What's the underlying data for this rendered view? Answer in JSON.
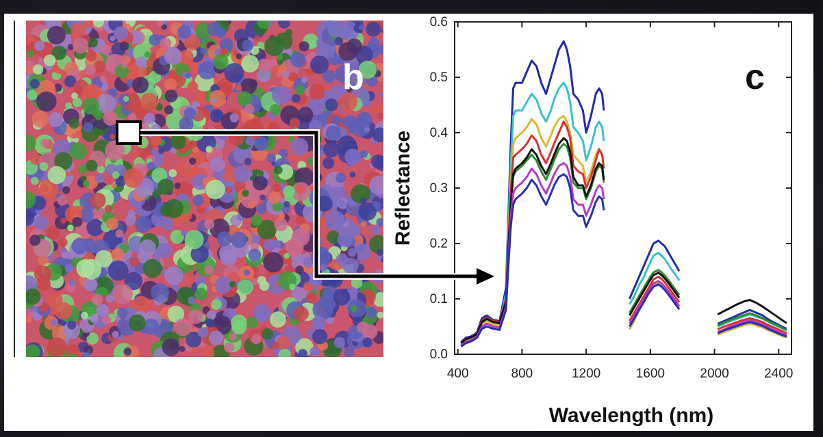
{
  "panels": {
    "map_label": "b",
    "chart_label": "c"
  },
  "colors": {
    "map_palette": [
      "#d9574f",
      "#c8464a",
      "#7c6fc4",
      "#5a5fb8",
      "#3d3f9a",
      "#a7e39a",
      "#76d37a",
      "#3f9b3a",
      "#2f6e2a",
      "#e0705a",
      "#9a7fc8",
      "#c96c8f",
      "#4a2f6a"
    ],
    "arrow": "#000000",
    "marker": "#ffffff"
  },
  "chart_data": {
    "type": "line",
    "xlabel": "Wavelength (nm)",
    "ylabel": "Reflectance",
    "xlim": [
      380,
      2480
    ],
    "ylim": [
      0.0,
      0.6
    ],
    "xticks": [
      400,
      800,
      1200,
      1600,
      2000,
      2400
    ],
    "yticks": [
      0.0,
      0.1,
      0.2,
      0.3,
      0.4,
      0.5,
      0.6
    ],
    "grid": false,
    "segments": [
      {
        "x": [
          420,
          450,
          480,
          500,
          520,
          550,
          580,
          620,
          660,
          700,
          715,
          730,
          745,
          760,
          780,
          800,
          830,
          860,
          890,
          920,
          950,
          980,
          1000,
          1030,
          1060,
          1080,
          1100,
          1120,
          1150,
          1180,
          1200,
          1230,
          1260,
          1280,
          1300,
          1310
        ]
      },
      {
        "x": [
          1470,
          1500,
          1530,
          1560,
          1590,
          1620,
          1650,
          1670,
          1690,
          1710,
          1730,
          1750,
          1770,
          1780
        ]
      },
      {
        "x": [
          2020,
          2060,
          2100,
          2140,
          2180,
          2220,
          2260,
          2300,
          2340,
          2380,
          2420,
          2450
        ]
      }
    ],
    "series": [
      {
        "color": "#1f2aa8",
        "values": [
          [
            0.022,
            0.03,
            0.032,
            0.035,
            0.04,
            0.065,
            0.07,
            0.062,
            0.06,
            0.12,
            0.25,
            0.38,
            0.48,
            0.49,
            0.49,
            0.49,
            0.51,
            0.53,
            0.52,
            0.49,
            0.47,
            0.5,
            0.52,
            0.55,
            0.565,
            0.55,
            0.52,
            0.47,
            0.46,
            0.44,
            0.4,
            0.43,
            0.47,
            0.48,
            0.47,
            0.44
          ],
          [
            0.1,
            0.12,
            0.14,
            0.16,
            0.18,
            0.2,
            0.205,
            0.2,
            0.195,
            0.185,
            0.175,
            0.165,
            0.155,
            0.15
          ],
          [
            0.055,
            0.06,
            0.065,
            0.07,
            0.075,
            0.08,
            0.075,
            0.07,
            0.062,
            0.056,
            0.05,
            0.046
          ]
        ]
      },
      {
        "color": "#38c0cc",
        "values": [
          [
            0.02,
            0.028,
            0.03,
            0.033,
            0.038,
            0.06,
            0.065,
            0.058,
            0.056,
            0.11,
            0.23,
            0.34,
            0.43,
            0.44,
            0.44,
            0.44,
            0.455,
            0.47,
            0.46,
            0.435,
            0.42,
            0.44,
            0.46,
            0.48,
            0.49,
            0.48,
            0.455,
            0.41,
            0.4,
            0.385,
            0.35,
            0.375,
            0.41,
            0.42,
            0.41,
            0.385
          ],
          [
            0.09,
            0.105,
            0.125,
            0.14,
            0.16,
            0.178,
            0.183,
            0.178,
            0.172,
            0.163,
            0.154,
            0.146,
            0.138,
            0.133
          ],
          [
            0.05,
            0.055,
            0.06,
            0.064,
            0.068,
            0.072,
            0.068,
            0.064,
            0.058,
            0.052,
            0.047,
            0.043
          ]
        ]
      },
      {
        "color": "#d8b838",
        "values": [
          [
            0.018,
            0.025,
            0.028,
            0.031,
            0.035,
            0.055,
            0.06,
            0.054,
            0.052,
            0.1,
            0.21,
            0.31,
            0.38,
            0.39,
            0.395,
            0.4,
            0.41,
            0.425,
            0.415,
            0.39,
            0.375,
            0.395,
            0.41,
            0.425,
            0.43,
            0.42,
            0.4,
            0.36,
            0.35,
            0.34,
            0.31,
            0.33,
            0.36,
            0.37,
            0.36,
            0.34
          ],
          [
            0.045,
            0.06,
            0.08,
            0.095,
            0.11,
            0.125,
            0.13,
            0.126,
            0.12,
            0.112,
            0.104,
            0.096,
            0.088,
            0.084
          ],
          [
            0.035,
            0.04,
            0.044,
            0.048,
            0.052,
            0.055,
            0.052,
            0.048,
            0.043,
            0.038,
            0.033,
            0.03
          ]
        ]
      },
      {
        "color": "#d83030",
        "values": [
          [
            0.02,
            0.028,
            0.03,
            0.033,
            0.038,
            0.06,
            0.066,
            0.06,
            0.058,
            0.1,
            0.2,
            0.29,
            0.355,
            0.36,
            0.365,
            0.37,
            0.38,
            0.395,
            0.385,
            0.36,
            0.345,
            0.365,
            0.38,
            0.4,
            0.42,
            0.41,
            0.39,
            0.34,
            0.33,
            0.325,
            0.3,
            0.32,
            0.35,
            0.37,
            0.36,
            0.335
          ],
          [
            0.06,
            0.075,
            0.09,
            0.105,
            0.12,
            0.135,
            0.14,
            0.136,
            0.13,
            0.122,
            0.114,
            0.106,
            0.098,
            0.094
          ],
          [
            0.045,
            0.05,
            0.054,
            0.058,
            0.062,
            0.065,
            0.062,
            0.058,
            0.052,
            0.047,
            0.042,
            0.038
          ]
        ]
      },
      {
        "color": "#2f8a2f",
        "values": [
          [
            0.015,
            0.022,
            0.025,
            0.028,
            0.032,
            0.05,
            0.055,
            0.05,
            0.048,
            0.09,
            0.19,
            0.27,
            0.32,
            0.33,
            0.335,
            0.34,
            0.35,
            0.36,
            0.35,
            0.33,
            0.315,
            0.335,
            0.35,
            0.37,
            0.38,
            0.375,
            0.355,
            0.31,
            0.3,
            0.3,
            0.28,
            0.3,
            0.33,
            0.34,
            0.335,
            0.31
          ],
          [
            0.075,
            0.09,
            0.105,
            0.12,
            0.135,
            0.148,
            0.152,
            0.148,
            0.142,
            0.135,
            0.127,
            0.119,
            0.111,
            0.107
          ],
          [
            0.052,
            0.057,
            0.062,
            0.066,
            0.07,
            0.074,
            0.07,
            0.065,
            0.059,
            0.054,
            0.048,
            0.044
          ]
        ]
      },
      {
        "color": "#111111",
        "values": [
          [
            0.02,
            0.027,
            0.03,
            0.033,
            0.037,
            0.058,
            0.064,
            0.058,
            0.056,
            0.095,
            0.19,
            0.27,
            0.325,
            0.335,
            0.34,
            0.345,
            0.355,
            0.37,
            0.36,
            0.34,
            0.325,
            0.345,
            0.36,
            0.38,
            0.39,
            0.385,
            0.365,
            0.32,
            0.305,
            0.305,
            0.285,
            0.305,
            0.335,
            0.345,
            0.34,
            0.315
          ],
          [
            0.07,
            0.085,
            0.1,
            0.115,
            0.13,
            0.143,
            0.147,
            0.143,
            0.137,
            0.13,
            0.122,
            0.114,
            0.106,
            0.102
          ],
          [
            0.072,
            0.078,
            0.084,
            0.09,
            0.095,
            0.098,
            0.093,
            0.086,
            0.078,
            0.07,
            0.062,
            0.056
          ]
        ]
      },
      {
        "color": "#b83ac0",
        "values": [
          [
            0.016,
            0.022,
            0.025,
            0.028,
            0.032,
            0.05,
            0.055,
            0.05,
            0.048,
            0.085,
            0.17,
            0.25,
            0.29,
            0.3,
            0.305,
            0.31,
            0.32,
            0.335,
            0.325,
            0.305,
            0.29,
            0.31,
            0.325,
            0.34,
            0.345,
            0.34,
            0.32,
            0.28,
            0.27,
            0.27,
            0.25,
            0.27,
            0.295,
            0.305,
            0.3,
            0.28
          ],
          [
            0.055,
            0.07,
            0.085,
            0.1,
            0.115,
            0.128,
            0.132,
            0.128,
            0.122,
            0.115,
            0.107,
            0.099,
            0.091,
            0.087
          ],
          [
            0.04,
            0.045,
            0.05,
            0.054,
            0.058,
            0.062,
            0.058,
            0.054,
            0.048,
            0.043,
            0.038,
            0.034
          ]
        ]
      },
      {
        "color": "#2a2fb0",
        "values": [
          [
            0.014,
            0.02,
            0.023,
            0.026,
            0.03,
            0.046,
            0.05,
            0.046,
            0.044,
            0.08,
            0.16,
            0.23,
            0.27,
            0.28,
            0.285,
            0.29,
            0.3,
            0.315,
            0.305,
            0.285,
            0.27,
            0.29,
            0.305,
            0.32,
            0.325,
            0.32,
            0.3,
            0.26,
            0.25,
            0.25,
            0.23,
            0.25,
            0.275,
            0.285,
            0.28,
            0.26
          ],
          [
            0.05,
            0.065,
            0.08,
            0.095,
            0.11,
            0.122,
            0.126,
            0.122,
            0.116,
            0.109,
            0.101,
            0.093,
            0.085,
            0.081
          ],
          [
            0.038,
            0.043,
            0.047,
            0.051,
            0.055,
            0.058,
            0.055,
            0.051,
            0.045,
            0.04,
            0.035,
            0.032
          ]
        ]
      }
    ]
  }
}
